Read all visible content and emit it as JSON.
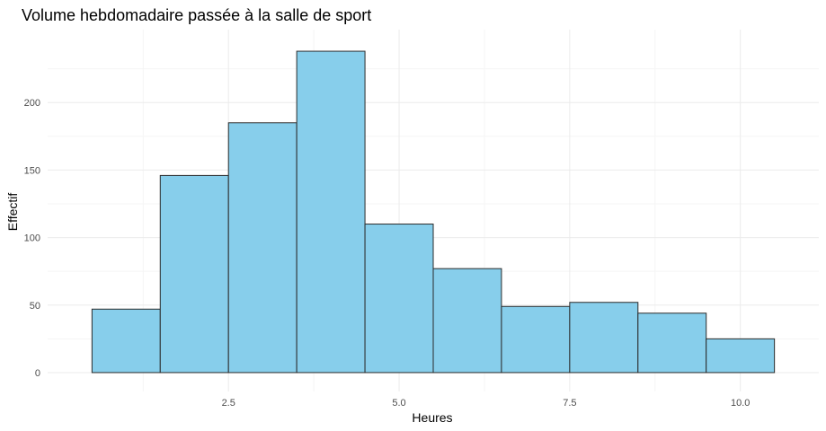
{
  "chart_data": {
    "type": "bar",
    "title": "Volume hebdomadaire passée à la salle de sport",
    "xlabel": "Heures",
    "ylabel": "Effectif",
    "bins": [
      {
        "start": 0.5,
        "end": 1.5,
        "count": 47
      },
      {
        "start": 1.5,
        "end": 2.5,
        "count": 146
      },
      {
        "start": 2.5,
        "end": 3.5,
        "count": 185
      },
      {
        "start": 3.5,
        "end": 4.5,
        "count": 238
      },
      {
        "start": 4.5,
        "end": 5.5,
        "count": 110
      },
      {
        "start": 5.5,
        "end": 6.5,
        "count": 77
      },
      {
        "start": 6.5,
        "end": 7.5,
        "count": 49
      },
      {
        "start": 7.5,
        "end": 8.5,
        "count": 52
      },
      {
        "start": 8.5,
        "end": 9.5,
        "count": 44
      },
      {
        "start": 9.5,
        "end": 10.5,
        "count": 25
      }
    ],
    "xlim": [
      -0.15,
      11.15
    ],
    "ylim": [
      -14,
      254
    ],
    "x_ticks": [
      {
        "value": 2.5,
        "label": "2.5"
      },
      {
        "value": 5.0,
        "label": "5.0"
      },
      {
        "value": 7.5,
        "label": "7.5"
      },
      {
        "value": 10.0,
        "label": "10.0"
      }
    ],
    "y_ticks": [
      {
        "value": 0,
        "label": "0"
      },
      {
        "value": 50,
        "label": "50"
      },
      {
        "value": 100,
        "label": "100"
      },
      {
        "value": 150,
        "label": "150"
      },
      {
        "value": 200,
        "label": "200"
      }
    ],
    "grid": true,
    "legend": "none",
    "colors": {
      "bar_fill": "#87ceeb",
      "bar_stroke": "#2b2b2b",
      "grid_major": "#ebebeb",
      "grid_minor": "#f5f5f5"
    }
  }
}
